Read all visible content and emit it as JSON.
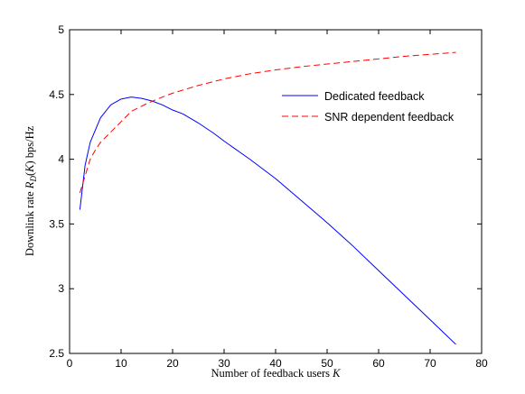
{
  "chart_data": {
    "type": "line",
    "title": "",
    "xlabel": "Number of feedback users K",
    "ylabel": "Downlink rate R_D(K) bps/Hz",
    "xlim": [
      0,
      80
    ],
    "ylim": [
      2.5,
      5
    ],
    "xticks": [
      "0",
      "10",
      "20",
      "30",
      "40",
      "50",
      "60",
      "70",
      "80"
    ],
    "yticks": [
      "2.5",
      "3",
      "3.5",
      "4",
      "4.5",
      "5"
    ],
    "grid": false,
    "legend_position": "upper-right",
    "series": [
      {
        "name": "Dedicated feedback",
        "color": "#0000ff",
        "line_style": "solid",
        "x": [
          2,
          3,
          4,
          6,
          8,
          10,
          12,
          14,
          16,
          18,
          20,
          22,
          25,
          28,
          30,
          35,
          40,
          45,
          50,
          55,
          60,
          65,
          70,
          75
        ],
        "y": [
          3.61,
          3.95,
          4.13,
          4.32,
          4.42,
          4.465,
          4.48,
          4.47,
          4.45,
          4.42,
          4.38,
          4.35,
          4.28,
          4.2,
          4.14,
          4.0,
          3.85,
          3.68,
          3.51,
          3.33,
          3.14,
          2.95,
          2.76,
          2.57
        ]
      },
      {
        "name": "SNR dependent feedback",
        "color": "#ff0000",
        "line_style": "dashed",
        "x": [
          2,
          3,
          4,
          5,
          6,
          8,
          10,
          12,
          15,
          18,
          20,
          25,
          30,
          35,
          40,
          45,
          50,
          55,
          60,
          65,
          70,
          75
        ],
        "y": [
          3.74,
          3.87,
          4.0,
          4.07,
          4.13,
          4.21,
          4.29,
          4.37,
          4.43,
          4.48,
          4.51,
          4.57,
          4.62,
          4.66,
          4.69,
          4.715,
          4.735,
          4.755,
          4.775,
          4.795,
          4.81,
          4.825
        ]
      }
    ]
  }
}
